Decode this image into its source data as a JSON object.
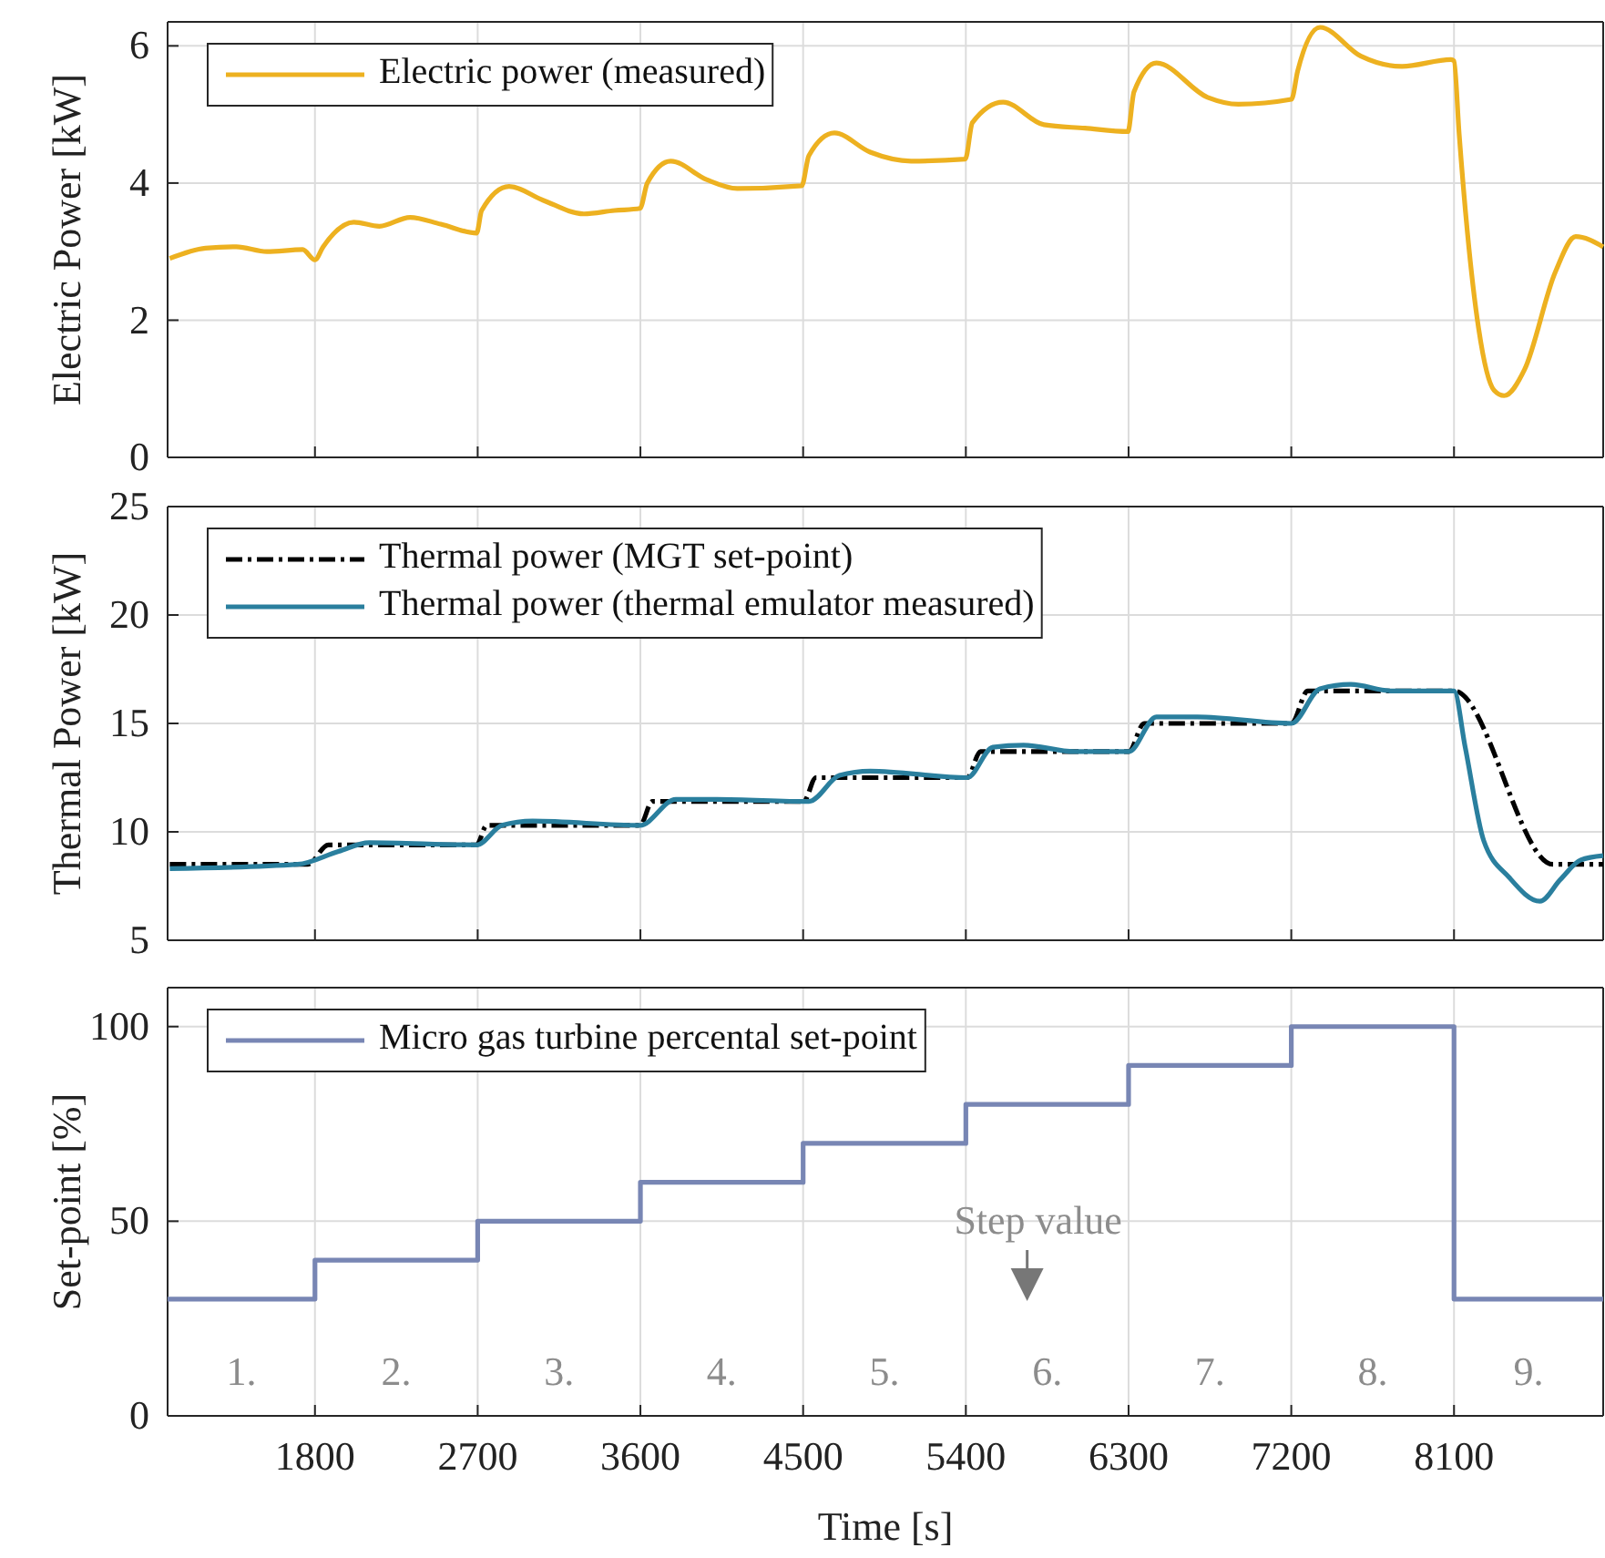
{
  "chart_data": [
    {
      "type": "line",
      "ylabel": "Electric Power [kW]",
      "xlim": [
        985,
        8925
      ],
      "xticks": [
        1800,
        2700,
        3600,
        4500,
        5400,
        6300,
        7200,
        8100
      ],
      "ylim": [
        0,
        6.35
      ],
      "yticks": [
        0,
        2,
        4,
        6
      ],
      "grid": true,
      "legend": "top left",
      "tick_labels": "y",
      "series": [
        {
          "name": "Electric power (measured)",
          "color": "#edb120",
          "x": [
            997,
            1195,
            1365,
            1534,
            1732,
            1800,
            1845,
            2015,
            2156,
            2326,
            2496,
            2694,
            2722,
            2874,
            3061,
            3287,
            3457,
            3598,
            3638,
            3768,
            3966,
            4136,
            4492,
            4532,
            4673,
            4871,
            5097,
            5397,
            5436,
            5606,
            5832,
            6058,
            6296,
            6330,
            6454,
            6737,
            6907,
            7201,
            7235,
            7359,
            7585,
            7812,
            8083,
            8100,
            8128,
            8236,
            8321,
            8377,
            8490,
            8660,
            8773,
            8925
          ],
          "values": [
            2.9,
            3.05,
            3.07,
            3.0,
            3.03,
            2.88,
            3.07,
            3.43,
            3.37,
            3.5,
            3.4,
            3.27,
            3.6,
            3.95,
            3.75,
            3.55,
            3.6,
            3.63,
            4.0,
            4.32,
            4.05,
            3.92,
            3.96,
            4.4,
            4.73,
            4.45,
            4.32,
            4.35,
            4.88,
            5.18,
            4.85,
            4.8,
            4.75,
            5.33,
            5.75,
            5.25,
            5.15,
            5.22,
            5.63,
            6.27,
            5.85,
            5.7,
            5.8,
            5.78,
            4.73,
            1.88,
            0.98,
            0.9,
            1.28,
            2.7,
            3.22,
            3.07
          ]
        }
      ]
    },
    {
      "type": "line",
      "ylabel": "Thermal Power [kW]",
      "xlim": [
        985,
        8925
      ],
      "xticks": [
        1800,
        2700,
        3600,
        4500,
        5400,
        6300,
        7200,
        8100
      ],
      "ylim": [
        5,
        25
      ],
      "yticks": [
        5,
        10,
        15,
        20,
        25
      ],
      "grid": true,
      "legend": "top left",
      "tick_labels": "y",
      "series": [
        {
          "name": "Thermal power (MGT set-point)",
          "color": "#000000",
          "line_style": "dashed",
          "x": [
            997,
            1760,
            1874,
            2694,
            2750,
            3598,
            3666,
            4503,
            4571,
            5408,
            5481,
            6301,
            6386,
            7201,
            7291,
            8100,
            8648,
            8925
          ],
          "values": [
            8.5,
            8.5,
            9.4,
            9.4,
            10.3,
            10.3,
            11.4,
            11.4,
            12.5,
            12.5,
            13.7,
            13.7,
            15.0,
            15.0,
            16.5,
            16.5,
            8.5,
            8.5
          ]
        },
        {
          "name": "Thermal power (thermal emulator measured)",
          "color": "#2a7f9e",
          "line_style": "solid",
          "x": [
            997,
            1704,
            1930,
            2100,
            2694,
            2835,
            3004,
            3598,
            3796,
            4022,
            4532,
            4701,
            4871,
            5408,
            5549,
            5719,
            6001,
            6301,
            6454,
            6680,
            7201,
            7359,
            7529,
            7755,
            8100,
            8162,
            8264,
            8405,
            8575,
            8688,
            8801,
            8925
          ],
          "values": [
            8.3,
            8.5,
            9.1,
            9.5,
            9.4,
            10.3,
            10.5,
            10.3,
            11.5,
            11.5,
            11.4,
            12.6,
            12.8,
            12.5,
            13.9,
            14.0,
            13.7,
            13.7,
            15.3,
            15.3,
            15.0,
            16.6,
            16.8,
            16.5,
            16.5,
            13.9,
            9.6,
            7.9,
            6.8,
            7.8,
            8.7,
            8.9
          ]
        }
      ]
    },
    {
      "type": "step",
      "ylabel": "Set-point [%]",
      "xlabel": "Time [s]",
      "xlim": [
        985,
        8925
      ],
      "xticks": [
        1800,
        2700,
        3600,
        4500,
        5400,
        6300,
        7200,
        8100
      ],
      "ylim": [
        0,
        110
      ],
      "yticks": [
        0,
        50,
        100
      ],
      "grid": true,
      "legend": "top left",
      "series": [
        {
          "name": "Micro gas turbine percental set-point",
          "color": "#7886b4",
          "x": [
            985,
            1800,
            2700,
            3600,
            4500,
            5400,
            6300,
            7200,
            8100,
            8925
          ],
          "values": [
            30,
            40,
            50,
            60,
            70,
            80,
            90,
            100,
            30,
            30
          ]
        }
      ],
      "annotations": [
        "1.",
        "2.",
        "3.",
        "4.",
        "5.",
        "6.",
        "7.",
        "8.",
        "9.",
        "Step value"
      ]
    }
  ]
}
